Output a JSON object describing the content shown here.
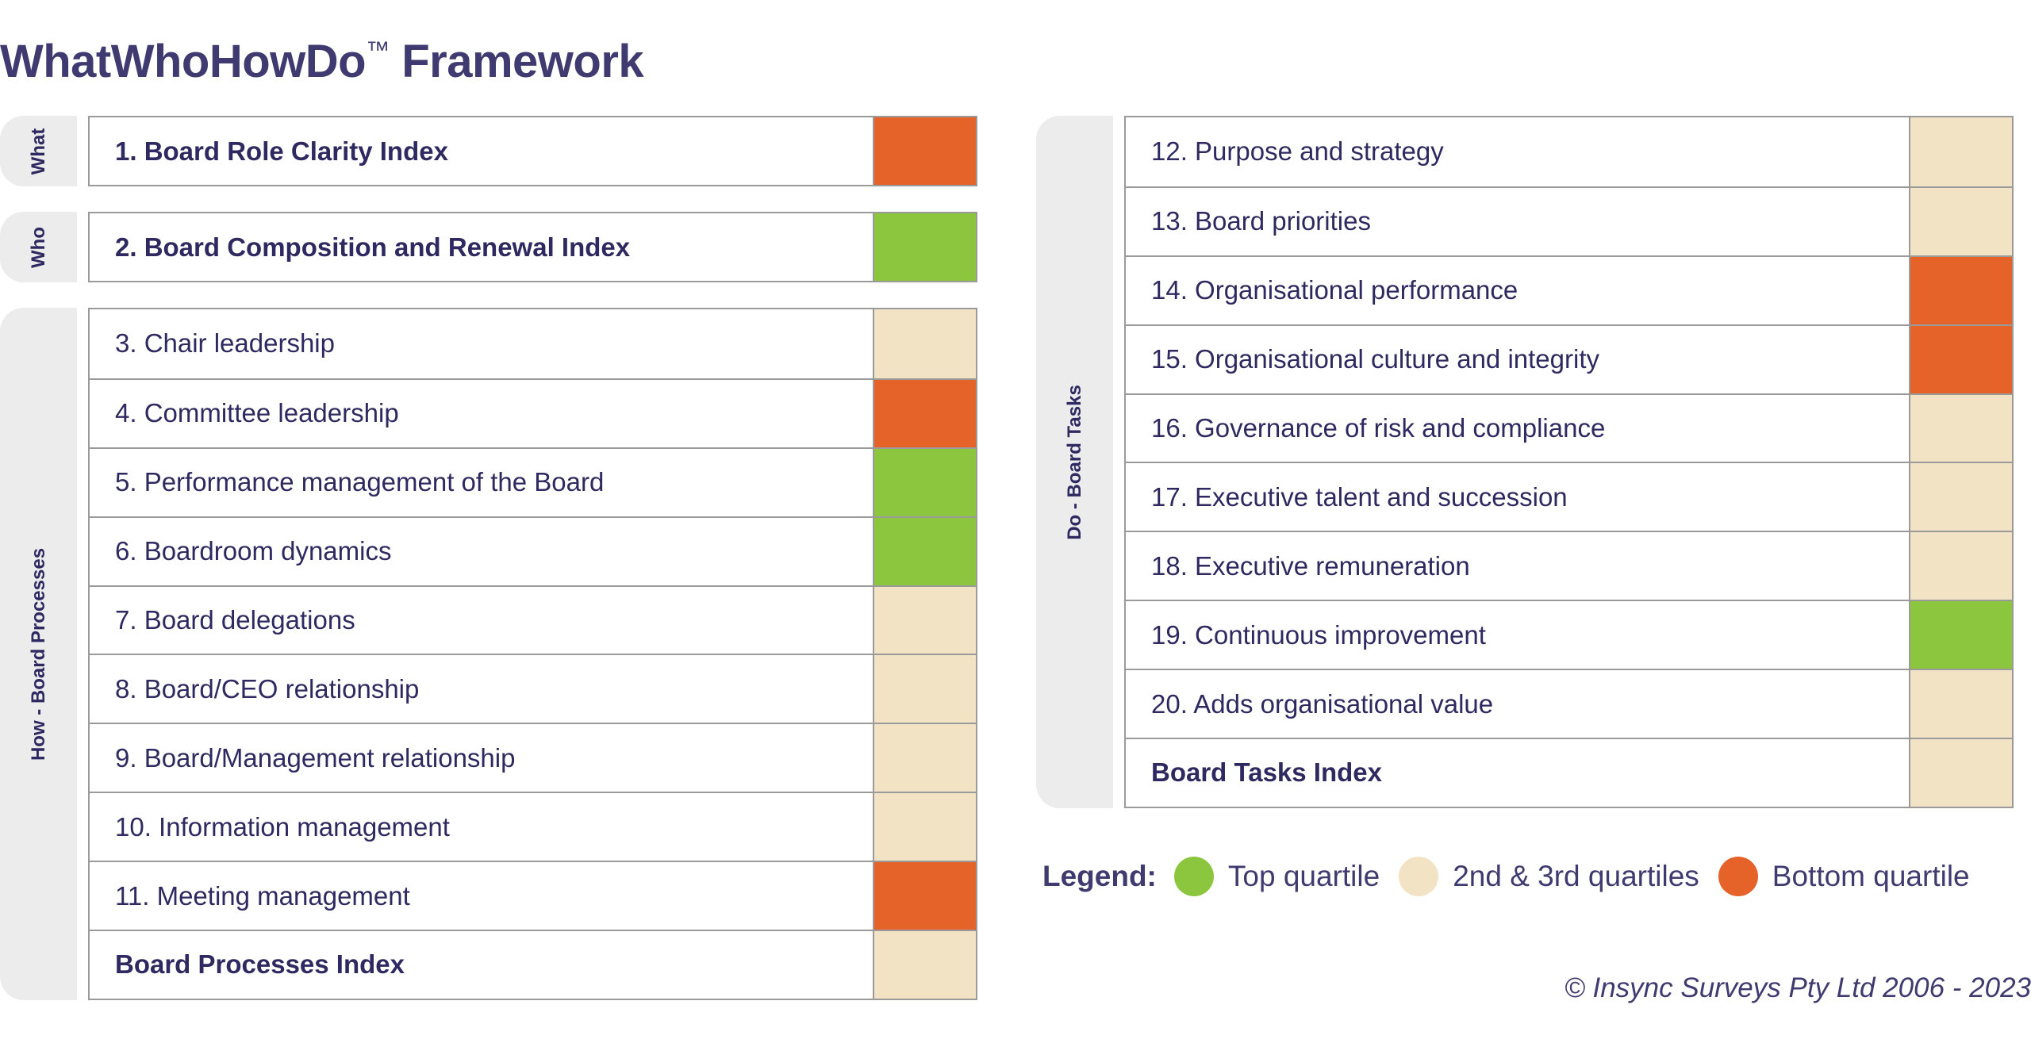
{
  "title": {
    "main": "WhatWhoHowDo",
    "tm": "™",
    "suffix": " Framework"
  },
  "colors": {
    "top": "#8cc63f",
    "middle": "#f1e3c4",
    "bottom": "#e56229"
  },
  "groups": [
    {
      "label": "What",
      "rows": [
        {
          "label": "1. Board Role Clarity Index",
          "bold": true,
          "status": "bottom"
        }
      ]
    },
    {
      "label": "Who",
      "rows": [
        {
          "label": "2. Board Composition and Renewal Index",
          "bold": true,
          "status": "top"
        }
      ]
    },
    {
      "label": "How - Board Processes",
      "rows": [
        {
          "label": "3. Chair leadership",
          "bold": false,
          "status": "middle"
        },
        {
          "label": "4. Committee leadership",
          "bold": false,
          "status": "bottom"
        },
        {
          "label": "5. Performance management of the Board",
          "bold": false,
          "status": "top"
        },
        {
          "label": "6. Boardroom dynamics",
          "bold": false,
          "status": "top"
        },
        {
          "label": "7. Board delegations",
          "bold": false,
          "status": "middle"
        },
        {
          "label": "8. Board/CEO relationship",
          "bold": false,
          "status": "middle"
        },
        {
          "label": "9. Board/Management relationship",
          "bold": false,
          "status": "middle"
        },
        {
          "label": "10. Information management",
          "bold": false,
          "status": "middle"
        },
        {
          "label": "11. Meeting management",
          "bold": false,
          "status": "bottom"
        },
        {
          "label": "Board Processes Index",
          "bold": true,
          "status": "middle"
        }
      ]
    },
    {
      "label": "Do - Board Tasks",
      "rows": [
        {
          "label": "12. Purpose and strategy",
          "bold": false,
          "status": "middle"
        },
        {
          "label": "13. Board priorities",
          "bold": false,
          "status": "middle"
        },
        {
          "label": "14. Organisational performance",
          "bold": false,
          "status": "bottom"
        },
        {
          "label": "15. Organisational culture and integrity",
          "bold": false,
          "status": "bottom"
        },
        {
          "label": "16. Governance of risk and compliance",
          "bold": false,
          "status": "middle"
        },
        {
          "label": "17. Executive talent and succession",
          "bold": false,
          "status": "middle"
        },
        {
          "label": "18. Executive remuneration",
          "bold": false,
          "status": "middle"
        },
        {
          "label": "19. Continuous improvement",
          "bold": false,
          "status": "top"
        },
        {
          "label": "20. Adds organisational value",
          "bold": false,
          "status": "middle"
        },
        {
          "label": "Board Tasks Index",
          "bold": true,
          "status": "middle"
        }
      ]
    }
  ],
  "legend": {
    "title": "Legend:",
    "items": [
      {
        "label": "Top quartile",
        "status": "top"
      },
      {
        "label": "2nd & 3rd quartiles",
        "status": "middle"
      },
      {
        "label": "Bottom quartile",
        "status": "bottom"
      }
    ]
  },
  "copyright": "© Insync Surveys Pty Ltd 2006 - 2023"
}
